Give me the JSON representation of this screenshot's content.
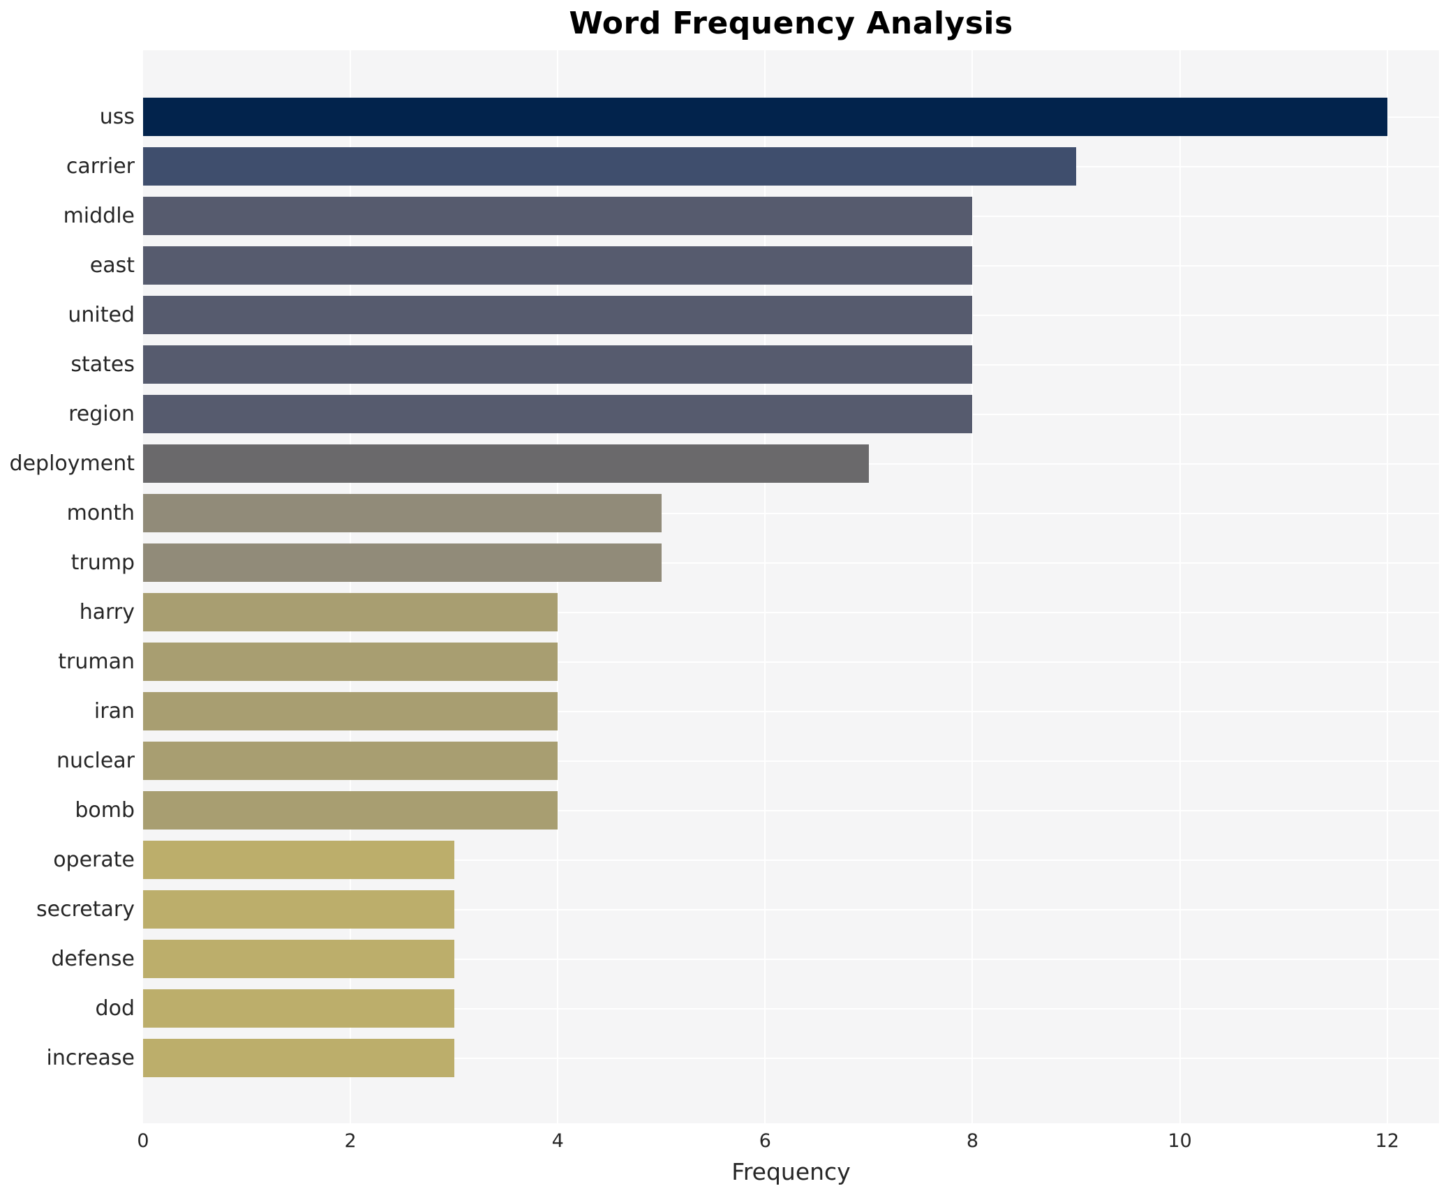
{
  "title": "Word Frequency Analysis",
  "chart_data": {
    "type": "bar",
    "orientation": "horizontal",
    "title": "Word Frequency Analysis",
    "xlabel": "Frequency",
    "ylabel": "",
    "xlim": [
      0,
      12.5
    ],
    "xticks": [
      0,
      2,
      4,
      6,
      8,
      10,
      12
    ],
    "grid": true,
    "legend": false,
    "categories": [
      "uss",
      "carrier",
      "middle",
      "east",
      "united",
      "states",
      "region",
      "deployment",
      "month",
      "trump",
      "harry",
      "truman",
      "iran",
      "nuclear",
      "bomb",
      "operate",
      "secretary",
      "defense",
      "dod",
      "increase"
    ],
    "values": [
      12,
      9,
      8,
      8,
      8,
      8,
      8,
      7,
      5,
      5,
      4,
      4,
      4,
      4,
      4,
      3,
      3,
      3,
      3,
      3
    ],
    "bar_colors": [
      "#02234c",
      "#3f4e6d",
      "#565b6e",
      "#565b6e",
      "#565b6e",
      "#565b6e",
      "#565b6e",
      "#6a696b",
      "#918b79",
      "#918b79",
      "#a89e71",
      "#a89e71",
      "#a89e71",
      "#a89e71",
      "#a89e71",
      "#bcae6b",
      "#bcae6b",
      "#bcae6b",
      "#bcae6b",
      "#bcae6b"
    ]
  },
  "colors": {
    "figure_bg": "#ffffff",
    "plot_bg": "#f5f5f6",
    "grid": "#ffffff",
    "text": "#262626",
    "title_text": "#000000"
  }
}
